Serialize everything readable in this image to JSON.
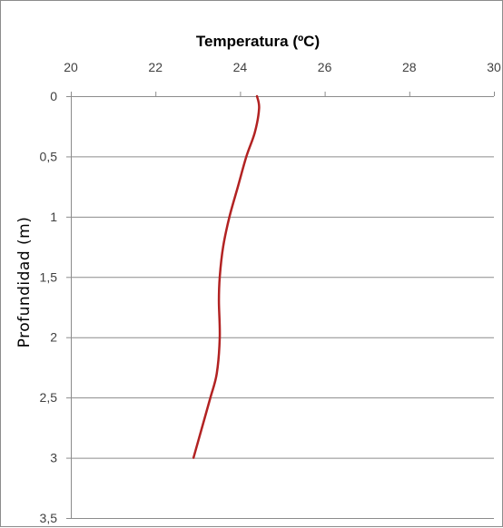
{
  "chart_data": {
    "type": "line",
    "title": "Temperatura (ºC)",
    "xlabel": "Temperatura (ºC)",
    "ylabel": "Profundidad (m)",
    "x_axis_position": "top",
    "y_axis_inverted": true,
    "xlim": [
      20,
      30
    ],
    "ylim": [
      0,
      3.5
    ],
    "x_ticks": [
      20,
      22,
      24,
      26,
      28,
      30
    ],
    "x_tick_labels": [
      "20",
      "22",
      "24",
      "26",
      "28",
      "30"
    ],
    "y_ticks": [
      0,
      0.5,
      1,
      1.5,
      2,
      2.5,
      3,
      3.5
    ],
    "y_tick_labels": [
      "0",
      "0,5",
      "1",
      "1,5",
      "2",
      "2,5",
      "3",
      "3,5"
    ],
    "grid": "horizontal",
    "legend": "none",
    "series": [
      {
        "color": "#b22222",
        "points": [
          {
            "x": 24.4,
            "y": 0
          },
          {
            "x": 24.45,
            "y": 0.1
          },
          {
            "x": 24.35,
            "y": 0.3
          },
          {
            "x": 24.15,
            "y": 0.5
          },
          {
            "x": 23.95,
            "y": 0.75
          },
          {
            "x": 23.75,
            "y": 1.0
          },
          {
            "x": 23.6,
            "y": 1.25
          },
          {
            "x": 23.52,
            "y": 1.5
          },
          {
            "x": 23.5,
            "y": 1.7
          },
          {
            "x": 23.52,
            "y": 2.0
          },
          {
            "x": 23.45,
            "y": 2.3
          },
          {
            "x": 23.3,
            "y": 2.5
          },
          {
            "x": 23.1,
            "y": 2.75
          },
          {
            "x": 22.9,
            "y": 3.0
          }
        ]
      }
    ]
  }
}
